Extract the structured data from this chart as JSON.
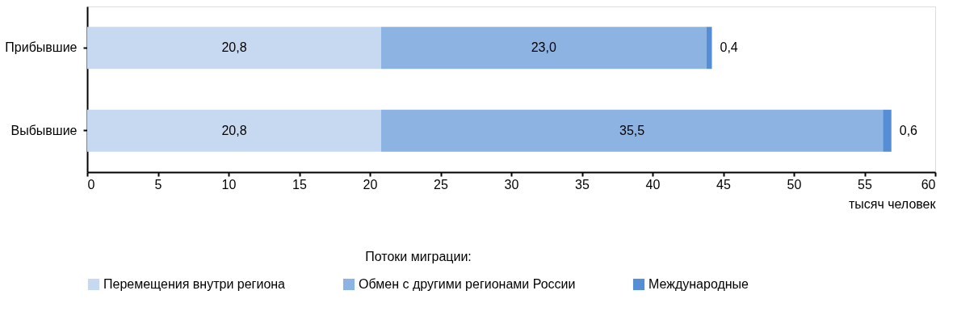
{
  "chart_data": {
    "type": "bar",
    "orientation": "horizontal",
    "stacked": true,
    "categories": [
      "Прибывшие",
      "Выбывшие"
    ],
    "series": [
      {
        "name": "Перемещения внутри региона",
        "color": "#c6d9f1",
        "values": [
          20.8,
          20.8
        ],
        "value_labels": [
          "20,8",
          "20,8"
        ]
      },
      {
        "name": "Обмен с другими регионами России",
        "color": "#8db3e2",
        "values": [
          23.0,
          35.5
        ],
        "value_labels": [
          "23,0",
          "35,5"
        ]
      },
      {
        "name": "Международные",
        "color": "#558ed5",
        "values": [
          0.4,
          0.6
        ],
        "value_labels": [
          "0,4",
          "0,6"
        ]
      }
    ],
    "xlim": [
      0,
      60
    ],
    "xticks": [
      0,
      5,
      10,
      15,
      20,
      25,
      30,
      35,
      40,
      45,
      50,
      55,
      60
    ],
    "xlabel": "тысяч человек",
    "legend_title": "Потоки миграции:",
    "legend": "bottom",
    "grid": false
  }
}
